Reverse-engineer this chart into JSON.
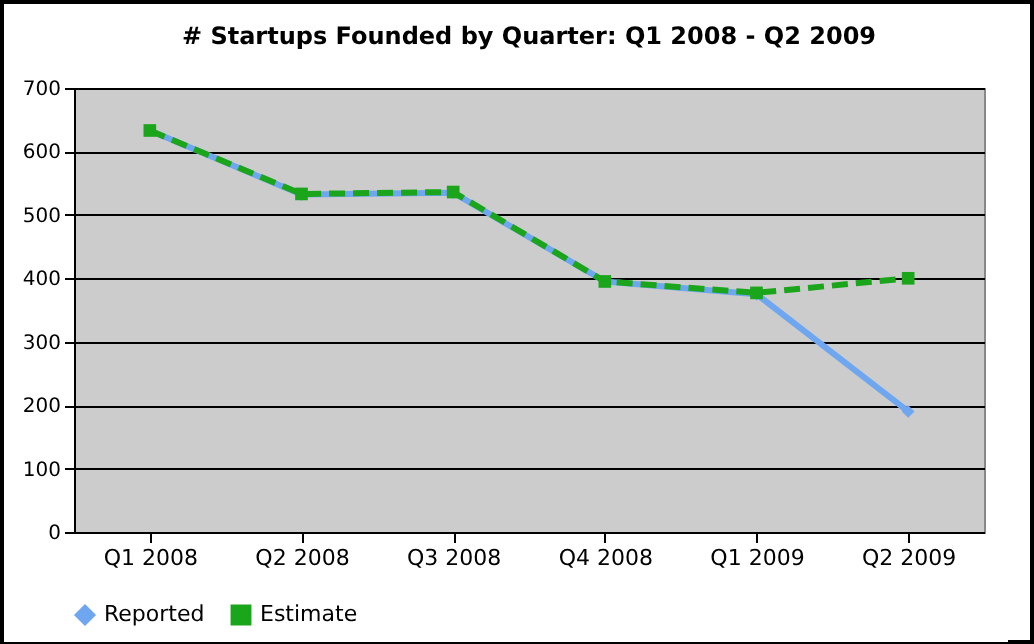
{
  "chart_data": {
    "type": "line",
    "title": "# Startups Founded by Quarter: Q1 2008 - Q2 2009",
    "categories": [
      "Q1 2008",
      "Q2 2008",
      "Q3 2008",
      "Q4 2008",
      "Q1 2009",
      "Q2 2009"
    ],
    "series": [
      {
        "name": "Reported",
        "color": "#6ea6f0",
        "marker": "diamond",
        "line_style": "solid",
        "values": [
          633,
          532,
          535,
          395,
          375,
          190
        ]
      },
      {
        "name": "Estimate",
        "color": "#1aa51a",
        "marker": "square",
        "line_style": "dashed",
        "values": [
          633,
          533,
          536,
          395,
          377,
          400
        ]
      }
    ],
    "ylim": [
      0,
      700
    ],
    "yticks": [
      0,
      100,
      200,
      300,
      400,
      500,
      600,
      700
    ],
    "grid": "y",
    "legend": "bottom"
  }
}
